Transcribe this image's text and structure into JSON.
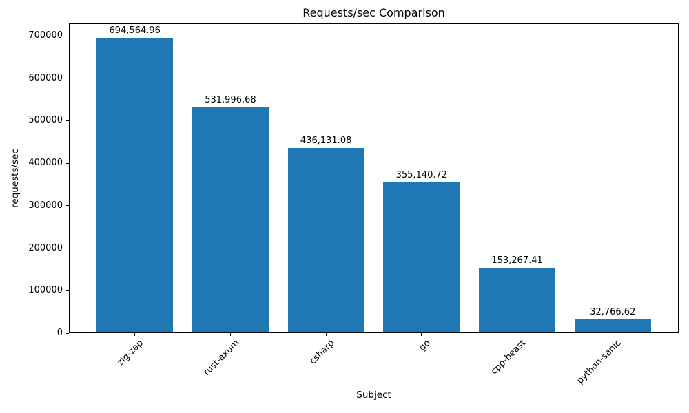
{
  "chart_data": {
    "type": "bar",
    "title": "Requests/sec Comparison",
    "xlabel": "Subject",
    "ylabel": "requests/sec",
    "categories": [
      "zig-zap",
      "rust-axum",
      "csharp",
      "go",
      "cpp-beast",
      "python-sanic"
    ],
    "values": [
      694564.96,
      531996.68,
      436131.08,
      355140.72,
      153267.41,
      32766.62
    ],
    "value_labels": [
      "694,564.96",
      "531,996.68",
      "436,131.08",
      "355,140.72",
      "153,267.41",
      "32,766.62"
    ],
    "yticks": [
      0,
      100000,
      200000,
      300000,
      400000,
      500000,
      600000,
      700000
    ],
    "ytick_labels": [
      "0",
      "100000",
      "200000",
      "300000",
      "400000",
      "500000",
      "600000",
      "700000"
    ],
    "ylim": [
      0,
      729293
    ],
    "bar_color": "#1f77b4",
    "background_color": "#ffffff",
    "grid": false,
    "legend": null
  }
}
